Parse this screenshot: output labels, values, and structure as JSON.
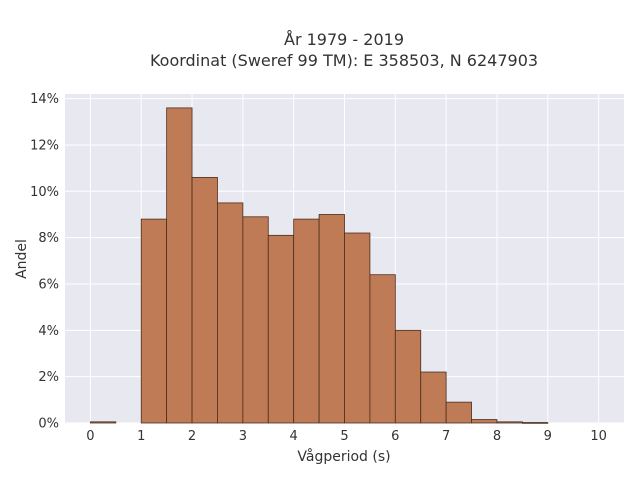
{
  "chart_data": {
    "type": "bar",
    "title_line1": "År 1979 - 2019",
    "title_line2": "Koordinat (Sweref 99 TM): E 358503, N 6247903",
    "xlabel": "Vågperiod (s)",
    "ylabel": "Andel",
    "xlim": [
      -0.5,
      10.5
    ],
    "ylim": [
      0,
      14.2
    ],
    "x_ticks": [
      0,
      1,
      2,
      3,
      4,
      5,
      6,
      7,
      8,
      9,
      10
    ],
    "y_ticks": [
      0,
      2,
      4,
      6,
      8,
      10,
      12,
      14
    ],
    "y_tick_suffix": "%",
    "grid": true,
    "bin_width": 0.5,
    "bins": [
      {
        "start": 0.0,
        "value": 0.05
      },
      {
        "start": 0.5,
        "value": 0.0
      },
      {
        "start": 1.0,
        "value": 8.8
      },
      {
        "start": 1.5,
        "value": 13.6
      },
      {
        "start": 2.0,
        "value": 10.6
      },
      {
        "start": 2.5,
        "value": 9.5
      },
      {
        "start": 3.0,
        "value": 8.9
      },
      {
        "start": 3.5,
        "value": 8.1
      },
      {
        "start": 4.0,
        "value": 8.8
      },
      {
        "start": 4.5,
        "value": 9.0
      },
      {
        "start": 5.0,
        "value": 8.2
      },
      {
        "start": 5.5,
        "value": 6.4
      },
      {
        "start": 6.0,
        "value": 4.0
      },
      {
        "start": 6.5,
        "value": 2.2
      },
      {
        "start": 7.0,
        "value": 0.9
      },
      {
        "start": 7.5,
        "value": 0.15
      },
      {
        "start": 8.0,
        "value": 0.05
      },
      {
        "start": 8.5,
        "value": 0.02
      }
    ],
    "colors": {
      "bar_fill": "#bf7b55",
      "bar_stroke": "#4a2e1e",
      "plot_bg": "#e8e8f0",
      "grid": "#ffffff"
    }
  }
}
